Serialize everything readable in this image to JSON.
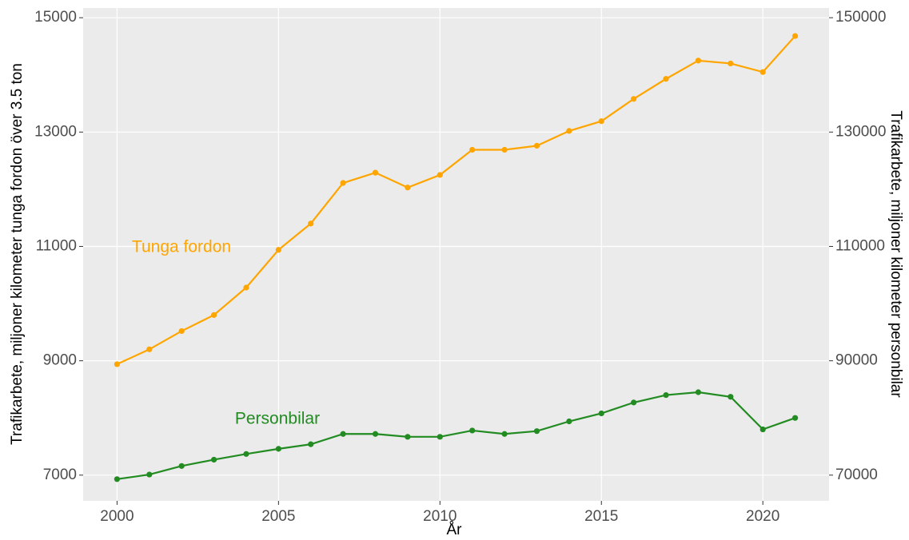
{
  "chart_data": {
    "type": "line",
    "x_label": "År",
    "y_label": "Trafikarbete, miljoner kilometer tunga fordon över 3.5 ton",
    "y2_label": "Trafikarbete, miljoner kilometer personbilar",
    "x": [
      2000,
      2001,
      2002,
      2003,
      2004,
      2005,
      2006,
      2007,
      2008,
      2009,
      2010,
      2011,
      2012,
      2013,
      2014,
      2015,
      2016,
      2017,
      2018,
      2019,
      2020,
      2021
    ],
    "series": [
      {
        "name": "Tunga fordon",
        "color": "#ffa500",
        "axis": "y",
        "values": [
          8940,
          9200,
          9520,
          9800,
          10280,
          10940,
          11400,
          12110,
          12290,
          12030,
          12250,
          12690,
          12690,
          12760,
          13020,
          13190,
          13580,
          13930,
          14250,
          14200,
          14050,
          14680
        ]
      },
      {
        "name": "Personbilar",
        "color": "#228b22",
        "axis": "y2",
        "values": [
          69300,
          70100,
          71600,
          72700,
          73700,
          74600,
          75400,
          77200,
          77200,
          76700,
          76700,
          77800,
          77200,
          77700,
          79400,
          80800,
          82700,
          84000,
          84500,
          83700,
          78000,
          80000
        ]
      }
    ],
    "xlim": [
      1998.95,
      2022.05
    ],
    "xticks": [
      2000,
      2005,
      2010,
      2015,
      2020
    ],
    "ylim": [
      6550,
      15170
    ],
    "yticks": [
      7000,
      9000,
      11000,
      13000,
      15000
    ],
    "y2lim": [
      65500,
      151700
    ],
    "y2ticks": [
      70000,
      90000,
      110000,
      130000,
      150000
    ],
    "grid": true
  }
}
